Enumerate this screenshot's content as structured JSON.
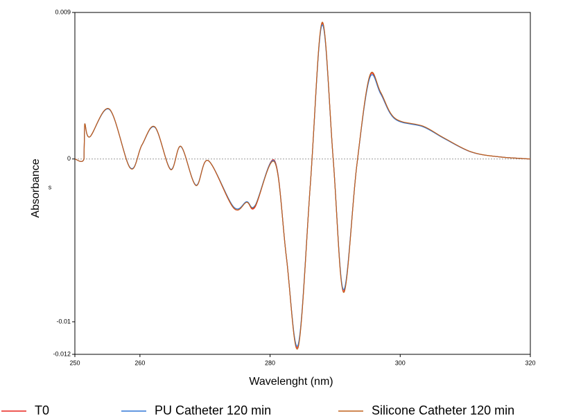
{
  "chart_data": {
    "type": "line",
    "xlabel": "Wavelenght (nm)",
    "ylabel": "Absorbance",
    "annotation": "s",
    "x": [
      250,
      251.4,
      251.5,
      252.3,
      255.3,
      258.5,
      260.3,
      262.3,
      264.7,
      266.3,
      268.6,
      270.5,
      274.4,
      276.4,
      277.7,
      280.7,
      282.5,
      284.3,
      286.2,
      288.0,
      289.7,
      291.3,
      293.3,
      295.3,
      297,
      299.2,
      303.5,
      306.7,
      310.9,
      315.2,
      320
    ],
    "series": [
      {
        "name": "T0",
        "color": "#e8201c",
        "values": [
          0,
          0,
          0.00213,
          0.00136,
          0.00306,
          -0.00055,
          0.00085,
          0.00196,
          -0.00064,
          0.00077,
          -0.00162,
          -0.0001,
          -0.00302,
          -0.00264,
          -0.00295,
          -0.0001,
          -0.006,
          -0.01152,
          -0.0015,
          0.00833,
          0,
          -0.00812,
          -0.0005,
          0.00505,
          0.004,
          0.00247,
          0.002,
          0.00128,
          0.00043,
          0.00013,
          0
        ]
      },
      {
        "name": "PU Catheter 120 min",
        "color": "#2e75d6",
        "values": [
          0,
          0,
          0.00213,
          0.00136,
          0.00304,
          -0.00053,
          0.00085,
          0.00194,
          -0.00062,
          0.00076,
          -0.0016,
          -0.0001,
          -0.00294,
          -0.00262,
          -0.00285,
          -0.00015,
          -0.006,
          -0.01142,
          -0.0015,
          0.00823,
          0,
          -0.00802,
          -0.0005,
          0.00495,
          0.004,
          0.00245,
          0.00198,
          0.00127,
          0.00043,
          0.00013,
          0
        ]
      },
      {
        "name": "Silicone Catheter 120 min",
        "color": "#c0601a",
        "values": [
          0,
          0,
          0.00213,
          0.00136,
          0.00307,
          -0.00056,
          0.00086,
          0.00197,
          -0.00065,
          0.00078,
          -0.00163,
          -0.0001,
          -0.003,
          -0.00266,
          -0.0029,
          -0.0002,
          -0.006,
          -0.0116,
          -0.0015,
          0.0084,
          0,
          -0.0082,
          -0.0005,
          0.0051,
          0.0041,
          0.0025,
          0.00202,
          0.0013,
          0.00044,
          0.00013,
          0
        ]
      }
    ],
    "xlim": [
      250,
      320
    ],
    "xticks": [
      250,
      260,
      280,
      300,
      320
    ],
    "ylim": [
      -0.012,
      0.009
    ],
    "yticks": [
      0.009,
      0,
      -0.01,
      -0.012
    ],
    "zero_line": true,
    "legend": "bottom"
  }
}
